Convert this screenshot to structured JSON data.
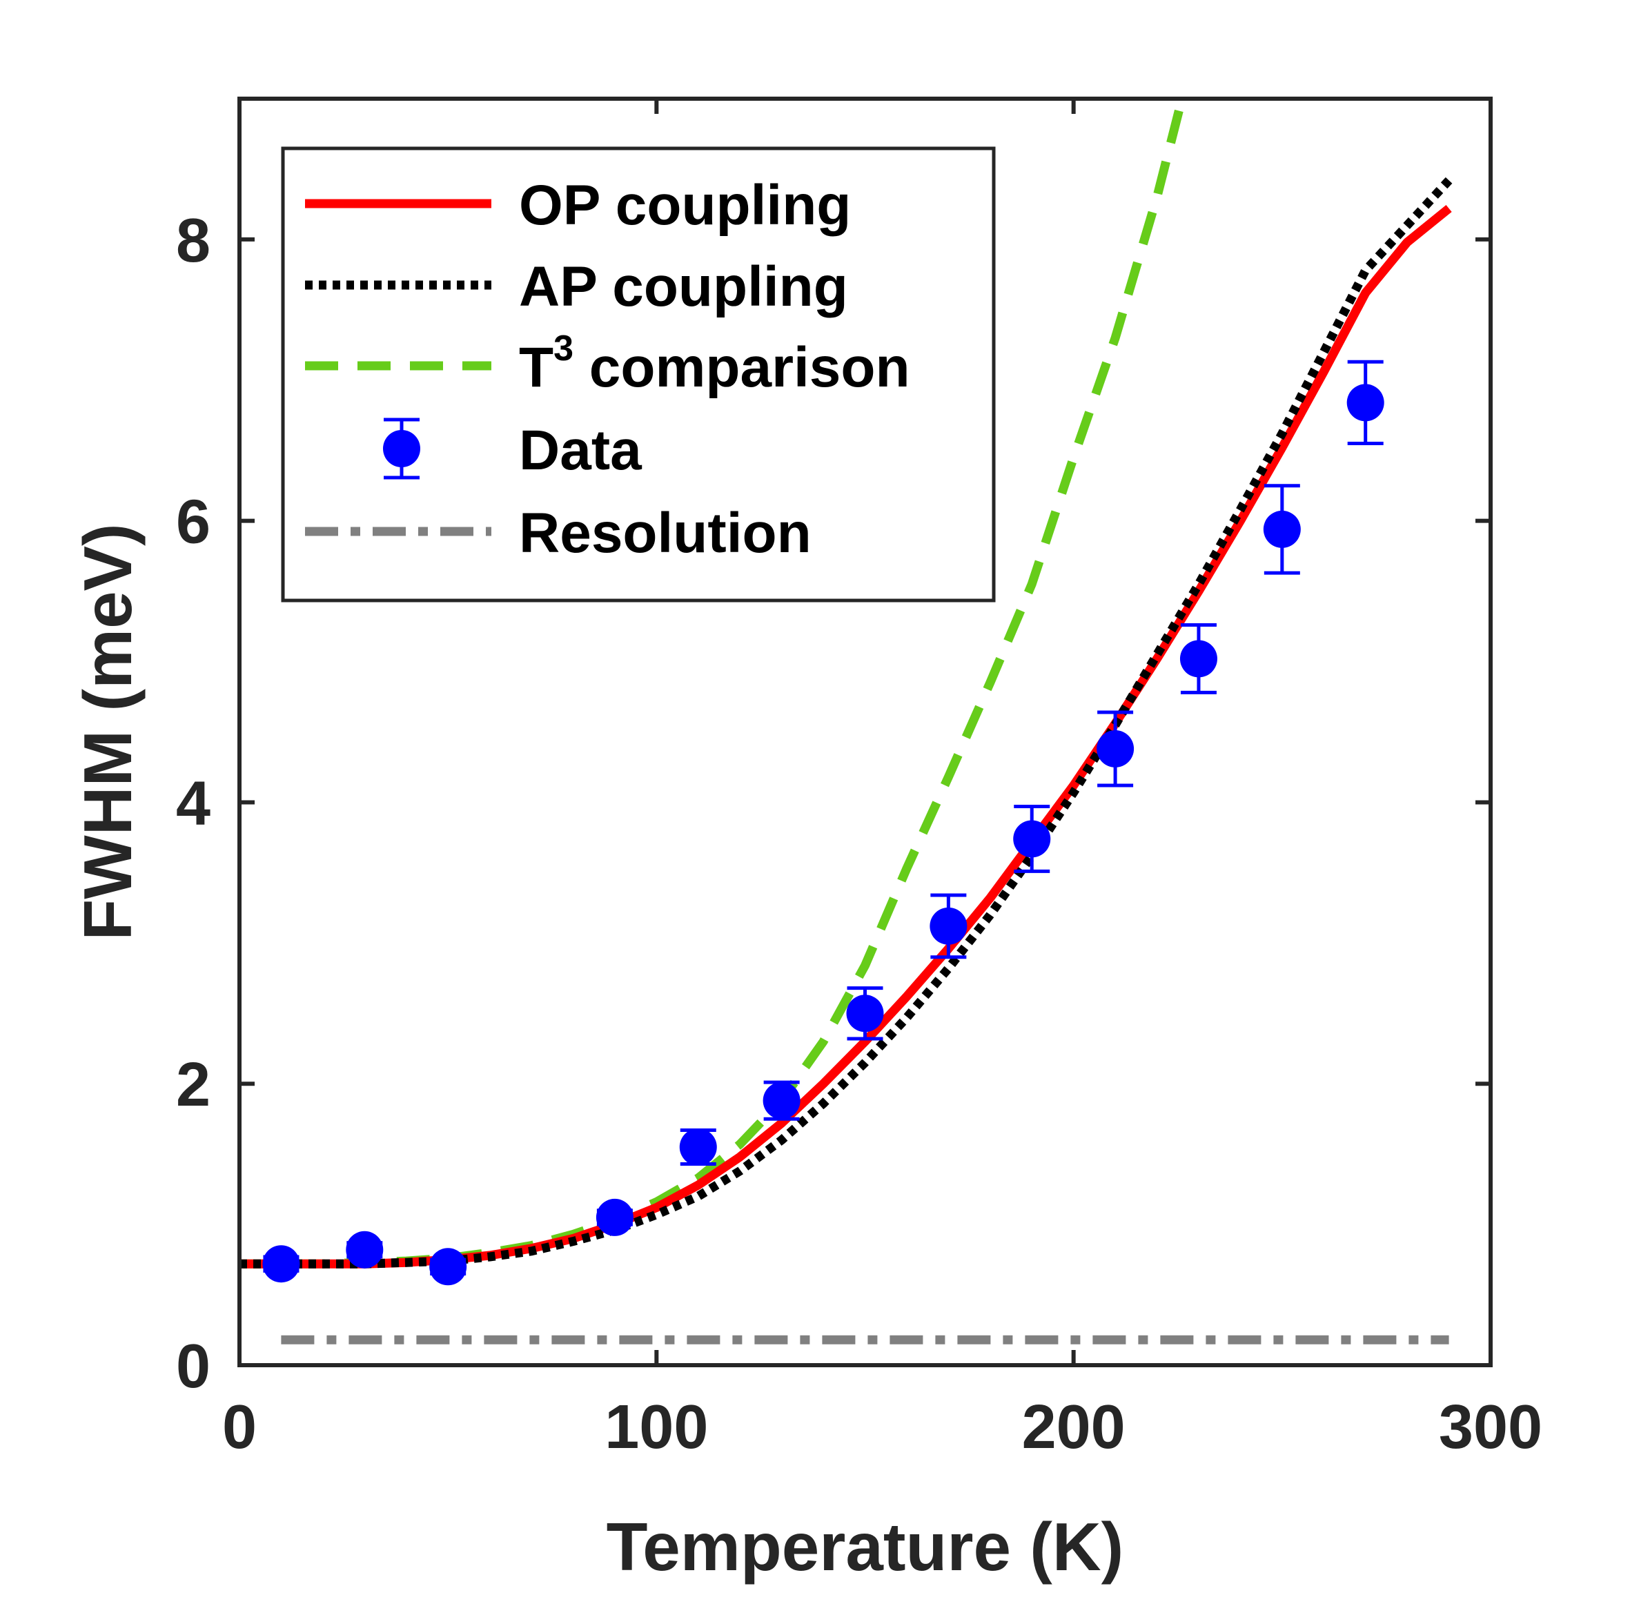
{
  "chart_data": {
    "type": "line",
    "xlabel": "Temperature (K)",
    "ylabel": "FWHM (meV)",
    "xlim": [
      0,
      300
    ],
    "ylim": [
      0,
      9
    ],
    "xticks": [
      0,
      100,
      200,
      300
    ],
    "yticks": [
      0,
      2,
      4,
      6,
      8
    ],
    "xtick_labels": [
      "0",
      "100",
      "200",
      "300"
    ],
    "ytick_labels": [
      "0",
      "2",
      "4",
      "6",
      "8"
    ],
    "grid": false,
    "legend_position": "top-left",
    "series": [
      {
        "name": "OP coupling",
        "style": "solid",
        "color": "#ff0000",
        "x": [
          0,
          10,
          20,
          30,
          40,
          50,
          60,
          70,
          80,
          90,
          100,
          110,
          120,
          130,
          140,
          150,
          160,
          170,
          180,
          190,
          200,
          210,
          220,
          230,
          240,
          250,
          260,
          270,
          280,
          290
        ],
        "y": [
          0.72,
          0.72,
          0.72,
          0.72,
          0.73,
          0.75,
          0.78,
          0.83,
          0.9,
          1.0,
          1.12,
          1.28,
          1.48,
          1.72,
          2.0,
          2.3,
          2.62,
          2.96,
          3.32,
          3.72,
          4.12,
          4.56,
          5.02,
          5.5,
          6.0,
          6.52,
          7.06,
          7.62,
          7.98,
          8.22
        ]
      },
      {
        "name": "AP coupling",
        "style": "dotted",
        "color": "#000000",
        "x": [
          0,
          10,
          20,
          30,
          40,
          50,
          60,
          70,
          80,
          90,
          100,
          110,
          120,
          130,
          140,
          150,
          160,
          170,
          180,
          190,
          200,
          210,
          220,
          230,
          240,
          250,
          260,
          270,
          280,
          290
        ],
        "y": [
          0.72,
          0.72,
          0.72,
          0.72,
          0.73,
          0.74,
          0.77,
          0.81,
          0.88,
          0.96,
          1.07,
          1.2,
          1.38,
          1.6,
          1.86,
          2.15,
          2.47,
          2.82,
          3.2,
          3.62,
          4.07,
          4.55,
          5.05,
          5.55,
          6.08,
          6.62,
          7.2,
          7.78,
          8.1,
          8.42
        ]
      },
      {
        "name": "T3 comparison",
        "style": "dashed",
        "color": "#66cc1a",
        "x": [
          0,
          10,
          20,
          30,
          40,
          50,
          60,
          70,
          80,
          90,
          100,
          110,
          120,
          130,
          140,
          150,
          160,
          170,
          180,
          190,
          200,
          210,
          220,
          226
        ],
        "y": [
          0.72,
          0.72,
          0.72,
          0.73,
          0.74,
          0.76,
          0.8,
          0.85,
          0.93,
          1.03,
          1.16,
          1.33,
          1.57,
          1.88,
          2.3,
          2.84,
          3.53,
          4.18,
          4.85,
          5.55,
          6.45,
          7.3,
          8.3,
          9.0
        ]
      },
      {
        "name": "Resolution",
        "style": "dashdot",
        "color": "#808080",
        "x": [
          10,
          290
        ],
        "y": [
          0.18,
          0.18
        ]
      }
    ],
    "data_points": {
      "name": "Data",
      "color": "#0000ff",
      "x": [
        10,
        30,
        50,
        90,
        110,
        130,
        150,
        170,
        190,
        210,
        230,
        250,
        270
      ],
      "y": [
        0.72,
        0.82,
        0.7,
        1.05,
        1.55,
        1.88,
        2.5,
        3.12,
        3.74,
        4.38,
        5.02,
        5.94,
        6.84
      ],
      "err": [
        0.05,
        0.05,
        0.05,
        0.05,
        0.12,
        0.13,
        0.18,
        0.22,
        0.23,
        0.26,
        0.24,
        0.31,
        0.29
      ]
    },
    "legend": [
      {
        "label": "OP coupling",
        "kind": "solid"
      },
      {
        "label": "AP coupling",
        "kind": "dotted"
      },
      {
        "label": "T",
        "superscript": "3",
        "suffix": " comparison",
        "kind": "dashed"
      },
      {
        "label": "Data",
        "kind": "marker"
      },
      {
        "label": "Resolution",
        "kind": "dashdot"
      }
    ]
  }
}
